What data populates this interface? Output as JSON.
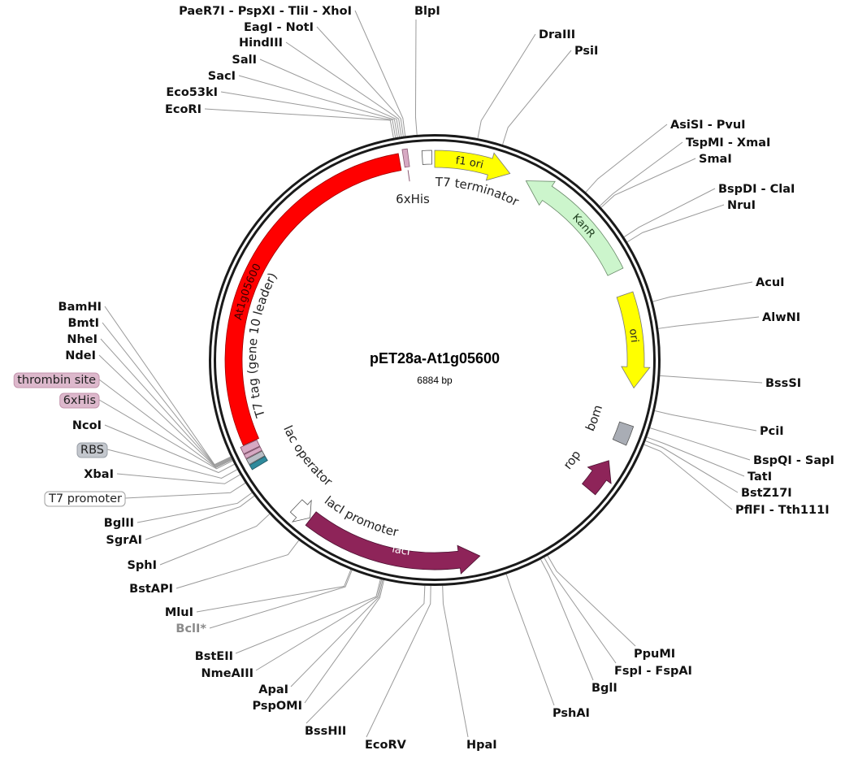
{
  "plasmid": {
    "name": "pET28a-At1g05600",
    "length": "6884 bp"
  },
  "features": {
    "insert": {
      "label": "At1g05600",
      "color": "#ff0000"
    },
    "f1_ori": {
      "label": "f1 ori",
      "color": "#ffff00"
    },
    "kanr": {
      "label": "KanR",
      "color": "#ccf5cc"
    },
    "ori": {
      "label": "ori",
      "color": "#ffff00"
    },
    "bom": {
      "label": "bom",
      "color": "#a9adb5"
    },
    "rop": {
      "label": "rop",
      "color": "#8e2459"
    },
    "laci": {
      "label": "lacI",
      "color": "#8e2459"
    },
    "laci_promoter": {
      "label": "lacI promoter",
      "color": "#ffffff"
    },
    "t7_terminator": {
      "label": "T7 terminator",
      "color": "#ffffff"
    },
    "his_tag_c": {
      "label": "6xHis",
      "color": "#d6a9c3"
    },
    "t7_tag": {
      "label": "T7 tag (gene 10 leader)",
      "color": "#d6a9c3"
    },
    "lac_operator": {
      "label": "lac operator",
      "color": "#2f8a9c"
    },
    "rbs_color": "#b9bec6",
    "thrombin_color": "#d6a9c3"
  },
  "sites": [
    {
      "name": "PaeR7I - PspXI - TliI - XhoI",
      "kind": "enzyme"
    },
    {
      "name": "EagI - NotI",
      "kind": "enzyme"
    },
    {
      "name": "HindIII",
      "kind": "enzyme"
    },
    {
      "name": "SalI",
      "kind": "enzyme"
    },
    {
      "name": "SacI",
      "kind": "enzyme"
    },
    {
      "name": "Eco53kI",
      "kind": "enzyme"
    },
    {
      "name": "EcoRI",
      "kind": "enzyme"
    },
    {
      "name": "BlpI",
      "kind": "enzyme"
    },
    {
      "name": "DraIII",
      "kind": "enzyme"
    },
    {
      "name": "PsiI",
      "kind": "enzyme"
    },
    {
      "name": "AsiSI - PvuI",
      "kind": "enzyme"
    },
    {
      "name": "TspMI - XmaI",
      "kind": "enzyme"
    },
    {
      "name": "SmaI",
      "kind": "enzyme"
    },
    {
      "name": "BspDI - ClaI",
      "kind": "enzyme"
    },
    {
      "name": "NruI",
      "kind": "enzyme"
    },
    {
      "name": "AcuI",
      "kind": "enzyme"
    },
    {
      "name": "AlwNI",
      "kind": "enzyme"
    },
    {
      "name": "BssSI",
      "kind": "enzyme"
    },
    {
      "name": "PciI",
      "kind": "enzyme"
    },
    {
      "name": "BspQI - SapI",
      "kind": "enzyme"
    },
    {
      "name": "TatI",
      "kind": "enzyme"
    },
    {
      "name": "BstZ17I",
      "kind": "enzyme"
    },
    {
      "name": "PflFI - Tth111I",
      "kind": "enzyme"
    },
    {
      "name": "PpuMI",
      "kind": "enzyme"
    },
    {
      "name": "FspI - FspAI",
      "kind": "enzyme"
    },
    {
      "name": "BglI",
      "kind": "enzyme"
    },
    {
      "name": "PshAI",
      "kind": "enzyme"
    },
    {
      "name": "HpaI",
      "kind": "enzyme"
    },
    {
      "name": "EcoRV",
      "kind": "enzyme"
    },
    {
      "name": "BssHII",
      "kind": "enzyme"
    },
    {
      "name": "PspOMI",
      "kind": "enzyme"
    },
    {
      "name": "ApaI",
      "kind": "enzyme"
    },
    {
      "name": "NmeAIII",
      "kind": "enzyme"
    },
    {
      "name": "BstEII",
      "kind": "enzyme"
    },
    {
      "name": "BclI*",
      "kind": "enzyme-muted"
    },
    {
      "name": "MluI",
      "kind": "enzyme"
    },
    {
      "name": "BstAPI",
      "kind": "enzyme"
    },
    {
      "name": "SphI",
      "kind": "enzyme"
    },
    {
      "name": "SgrAI",
      "kind": "enzyme"
    },
    {
      "name": "BglII",
      "kind": "enzyme"
    },
    {
      "name": "T7 promoter",
      "kind": "feature",
      "box": "#ffffff",
      "border": "#a0a0a0"
    },
    {
      "name": "XbaI",
      "kind": "enzyme"
    },
    {
      "name": "RBS",
      "kind": "feature",
      "box": "#c3c7cd",
      "border": "#9aa0a8"
    },
    {
      "name": "NcoI",
      "kind": "enzyme"
    },
    {
      "name": "6xHis",
      "kind": "feature",
      "box": "#ddb8cc",
      "border": "#c395ad"
    },
    {
      "name": "thrombin site",
      "kind": "feature",
      "box": "#ddb8cc",
      "border": "#c395ad"
    },
    {
      "name": "NdeI",
      "kind": "enzyme"
    },
    {
      "name": "NheI",
      "kind": "enzyme"
    },
    {
      "name": "BmtI",
      "kind": "enzyme"
    },
    {
      "name": "BamHI",
      "kind": "enzyme"
    }
  ]
}
